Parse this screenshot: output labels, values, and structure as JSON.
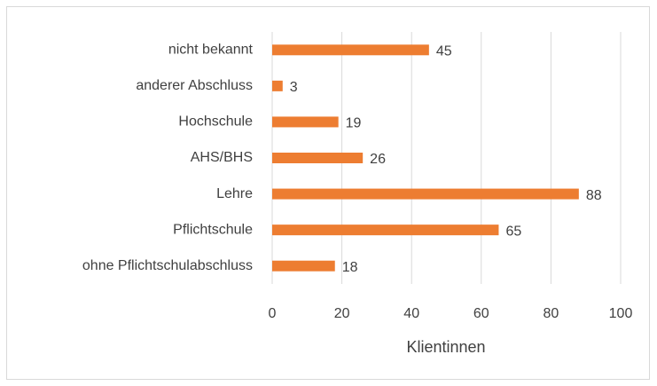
{
  "chart_data": {
    "type": "bar",
    "orientation": "horizontal",
    "categories": [
      "nicht bekannt",
      "anderer Abschluss",
      "Hochschule",
      "AHS/BHS",
      "Lehre",
      "Pflichtschule",
      "ohne Pflichtschulabschluss"
    ],
    "values": [
      45,
      3,
      19,
      26,
      88,
      65,
      18
    ],
    "color": "#ed7d31",
    "xlabel": "Klientinnen",
    "xlim": [
      0,
      100
    ],
    "xticks": [
      0,
      20,
      40,
      60,
      80,
      100
    ],
    "grid": true
  }
}
